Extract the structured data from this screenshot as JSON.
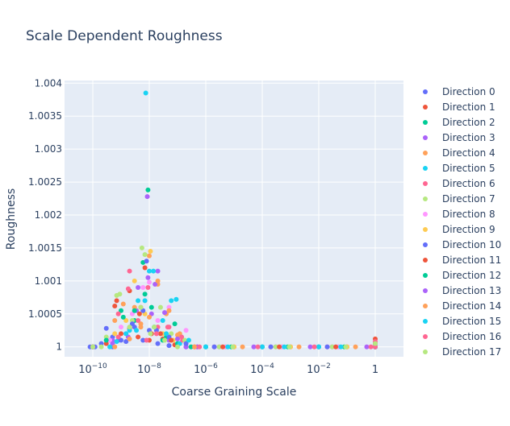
{
  "chart_data": {
    "type": "scatter",
    "title": "Scale Dependent Roughness",
    "xlabel": "Coarse Graining Scale",
    "ylabel": "Roughness",
    "x_scale": "log",
    "xlim": [
      1e-11,
      10
    ],
    "ylim": [
      0.99985,
      1.00404
    ],
    "x_ticks": [
      {
        "value": 1e-10,
        "base": "10",
        "exp": "−10"
      },
      {
        "value": 1e-08,
        "base": "10",
        "exp": "−8"
      },
      {
        "value": 1e-06,
        "base": "10",
        "exp": "−6"
      },
      {
        "value": 0.0001,
        "base": "10",
        "exp": "−4"
      },
      {
        "value": 0.01,
        "base": "10",
        "exp": "−2"
      },
      {
        "value": 1,
        "base": "1",
        "exp": ""
      }
    ],
    "y_ticks": [
      {
        "value": 1.0,
        "label": "1"
      },
      {
        "value": 1.0005,
        "label": "1.0005"
      },
      {
        "value": 1.001,
        "label": "1.001"
      },
      {
        "value": 1.0015,
        "label": "1.0015"
      },
      {
        "value": 1.002,
        "label": "1.002"
      },
      {
        "value": 1.0025,
        "label": "1.0025"
      },
      {
        "value": 1.003,
        "label": "1.003"
      },
      {
        "value": 1.0035,
        "label": "1.0035"
      },
      {
        "value": 1.004,
        "label": "1.004"
      }
    ],
    "grid": true,
    "legend_position": "right",
    "series": [
      {
        "name": "Direction 0",
        "color": "#636efa",
        "points": [
          [
            8e-11,
            1.0
          ],
          [
            1.2e-10,
            1.0
          ],
          [
            2e-10,
            1.00005
          ],
          [
            3e-10,
            1.00028
          ],
          [
            5e-10,
            1.00015
          ],
          [
            8e-10,
            1.0001
          ],
          [
            1.5e-09,
            1.00008
          ],
          [
            3e-09,
            1.0003
          ],
          [
            6e-09,
            1.0001
          ],
          [
            1e-08,
            1.00025
          ],
          [
            2e-08,
            1.00005
          ],
          [
            5e-08,
            1.00002
          ],
          [
            2e-07,
            1.0
          ],
          [
            1e-06,
            1.0
          ],
          [
            0.0001,
            1.0
          ],
          [
            0.01,
            1.0
          ],
          [
            1,
            1.0
          ]
        ]
      },
      {
        "name": "Direction 1",
        "color": "#EF553B",
        "points": [
          [
            1e-10,
            1.0
          ],
          [
            3e-10,
            1.00005
          ],
          [
            6e-10,
            1.00062
          ],
          [
            1e-09,
            1.0002
          ],
          [
            2e-09,
            1.00028
          ],
          [
            4e-09,
            1.00015
          ],
          [
            7e-09,
            1.0012
          ],
          [
            1.2e-08,
            1.0002
          ],
          [
            3e-08,
            1.00012
          ],
          [
            8e-08,
            1.00003
          ],
          [
            5e-07,
            1.0
          ],
          [
            1e-05,
            1.0
          ],
          [
            0.001,
            1.0
          ],
          [
            0.1,
            1.0
          ],
          [
            1,
            1.00012
          ]
        ]
      },
      {
        "name": "Direction 2",
        "color": "#00cc96",
        "points": [
          [
            1e-10,
            1.0
          ],
          [
            4e-10,
            1.0001
          ],
          [
            1e-09,
            1.00055
          ],
          [
            3e-09,
            1.0004
          ],
          [
            6e-09,
            1.00128
          ],
          [
            9e-09,
            1.00238
          ],
          [
            1.5e-08,
            1.0003
          ],
          [
            4e-08,
            1.00015
          ],
          [
            1e-07,
            1.00005
          ],
          [
            1e-06,
            1.0
          ],
          [
            0.0001,
            1.0
          ],
          [
            0.01,
            1.0
          ],
          [
            1,
            1.00005
          ]
        ]
      },
      {
        "name": "Direction 3",
        "color": "#ab63fa",
        "points": [
          [
            1e-10,
            1.0
          ],
          [
            5e-10,
            1.0001
          ],
          [
            1.5e-09,
            1.0002
          ],
          [
            3.5e-09,
            1.00055
          ],
          [
            8.5e-09,
            1.00228
          ],
          [
            1.2e-08,
            1.0005
          ],
          [
            2e-08,
            1.00115
          ],
          [
            5e-08,
            1.0001
          ],
          [
            2e-07,
            1.0
          ],
          [
            3e-06,
            1.0
          ],
          [
            0.0003,
            1.0
          ],
          [
            0.03,
            1.0
          ],
          [
            1,
            1.0
          ]
        ]
      },
      {
        "name": "Direction 4",
        "color": "#FFA15A",
        "points": [
          [
            1e-10,
            1.0
          ],
          [
            6e-10,
            1.0004
          ],
          [
            1.2e-09,
            1.00065
          ],
          [
            3e-09,
            1.0006
          ],
          [
            5e-09,
            1.00035
          ],
          [
            1e-08,
            1.00138
          ],
          [
            2e-08,
            1.00095
          ],
          [
            4e-08,
            1.0005
          ],
          [
            1e-07,
            1.00018
          ],
          [
            4e-07,
            1.0
          ],
          [
            5e-06,
            1.0
          ],
          [
            0.0005,
            1.0
          ],
          [
            0.05,
            1.0
          ],
          [
            1,
            1.0
          ]
        ]
      },
      {
        "name": "Direction 5",
        "color": "#19d3f3",
        "points": [
          [
            1e-10,
            1.0
          ],
          [
            7e-10,
            1.00008
          ],
          [
            2e-09,
            1.00025
          ],
          [
            4e-09,
            1.0007
          ],
          [
            7.5e-09,
            1.00385
          ],
          [
            1e-08,
            1.00115
          ],
          [
            3e-08,
            1.0004
          ],
          [
            6e-08,
            1.0007
          ],
          [
            1.2e-07,
            1.00005
          ],
          [
            1e-06,
            1.0
          ],
          [
            0.0001,
            1.0
          ],
          [
            0.01,
            1.0
          ],
          [
            1,
            1.0
          ]
        ]
      },
      {
        "name": "Direction 6",
        "color": "#FF6692",
        "points": [
          [
            1e-10,
            1.0
          ],
          [
            8e-10,
            1.0005
          ],
          [
            2e-09,
            1.00115
          ],
          [
            5e-09,
            1.0006
          ],
          [
            9e-09,
            1.0009
          ],
          [
            2e-08,
            1.0003
          ],
          [
            5e-08,
            1.0003
          ],
          [
            1.5e-07,
            1.0001
          ],
          [
            2e-06,
            1.0
          ],
          [
            0.0002,
            1.0
          ],
          [
            0.02,
            1.0
          ],
          [
            1,
            1.00008
          ]
        ]
      },
      {
        "name": "Direction 7",
        "color": "#B6E880",
        "points": [
          [
            1e-10,
            1.0
          ],
          [
            3e-10,
            1.00015
          ],
          [
            9e-10,
            1.0008
          ],
          [
            2.5e-09,
            1.0004
          ],
          [
            5.5e-09,
            1.0015
          ],
          [
            1.1e-08,
            1.0002
          ],
          [
            2.5e-08,
            1.0006
          ],
          [
            6e-08,
            1.0002
          ],
          [
            1.8e-07,
            1.0001
          ],
          [
            3e-06,
            1.0
          ],
          [
            0.0003,
            1.0
          ],
          [
            0.03,
            1.0
          ],
          [
            1,
            1.0
          ]
        ]
      },
      {
        "name": "Direction 8",
        "color": "#FF97FF",
        "points": [
          [
            1e-10,
            1.0
          ],
          [
            4e-10,
            1.0001
          ],
          [
            1e-09,
            1.0003
          ],
          [
            2.5e-09,
            1.0005
          ],
          [
            6e-09,
            1.0009
          ],
          [
            1e-08,
            1.00098
          ],
          [
            2e-08,
            1.0004
          ],
          [
            5e-08,
            1.0006
          ],
          [
            2e-07,
            1.00025
          ],
          [
            5e-06,
            1.0
          ],
          [
            0.0005,
            1.0
          ],
          [
            0.05,
            1.0
          ],
          [
            1,
            1.0
          ]
        ]
      },
      {
        "name": "Direction 9",
        "color": "#FECB52",
        "points": [
          [
            1e-10,
            1.0
          ],
          [
            6e-10,
            1.0002
          ],
          [
            1.5e-09,
            1.0004
          ],
          [
            3e-09,
            1.001
          ],
          [
            7e-09,
            1.0005
          ],
          [
            1.1e-08,
            1.00145
          ],
          [
            3e-08,
            1.0002
          ],
          [
            7e-08,
            1.0001
          ],
          [
            3e-07,
            1.0
          ],
          [
            1e-05,
            1.0
          ],
          [
            0.001,
            1.0
          ],
          [
            0.1,
            1.0
          ],
          [
            1,
            1.0
          ]
        ]
      },
      {
        "name": "Direction 10",
        "color": "#636efa",
        "points": [
          [
            1e-10,
            1.0
          ],
          [
            5e-10,
            1.0
          ],
          [
            1e-09,
            1.0001
          ],
          [
            2.5e-09,
            1.00035
          ],
          [
            6e-09,
            1.00055
          ],
          [
            8e-09,
            1.0013
          ],
          [
            1.8e-08,
            1.00025
          ],
          [
            5e-08,
            1.00015
          ],
          [
            2e-07,
            1.00005
          ],
          [
            2e-06,
            1.0
          ],
          [
            0.0002,
            1.0
          ],
          [
            0.02,
            1.0
          ],
          [
            1,
            1.0
          ]
        ]
      },
      {
        "name": "Direction 11",
        "color": "#EF553B",
        "points": [
          [
            1e-10,
            1.0
          ],
          [
            7e-10,
            1.0007
          ],
          [
            2e-09,
            1.00085
          ],
          [
            4.5e-09,
            1.0005
          ],
          [
            1e-08,
            1.0001
          ],
          [
            2.5e-08,
            1.0002
          ],
          [
            6e-08,
            1.0001
          ],
          [
            4e-07,
            1.0
          ],
          [
            4e-06,
            1.0
          ],
          [
            0.0004,
            1.0
          ],
          [
            0.04,
            1.0
          ],
          [
            1,
            1.0
          ]
        ]
      },
      {
        "name": "Direction 12",
        "color": "#00cc96",
        "points": [
          [
            1e-10,
            1.0
          ],
          [
            3e-10,
            1.0001
          ],
          [
            1.2e-09,
            1.00045
          ],
          [
            3e-09,
            1.00055
          ],
          [
            7e-09,
            1.0008
          ],
          [
            1.2e-08,
            1.0006
          ],
          [
            3e-08,
            1.0001
          ],
          [
            8e-08,
            1.00035
          ],
          [
            3e-07,
            1.0
          ],
          [
            8e-06,
            1.0
          ],
          [
            0.0008,
            1.0
          ],
          [
            0.08,
            1.0
          ],
          [
            1,
            1.0
          ]
        ]
      },
      {
        "name": "Direction 13",
        "color": "#ab63fa",
        "points": [
          [
            1e-10,
            1.0
          ],
          [
            5e-10,
            1.00005
          ],
          [
            1.8e-09,
            1.00015
          ],
          [
            4e-09,
            1.0009
          ],
          [
            9e-09,
            1.00105
          ],
          [
            1.6e-08,
            1.00095
          ],
          [
            3.5e-08,
            1.00052
          ],
          [
            1e-07,
            1.00012
          ],
          [
            5e-07,
            1.0
          ],
          [
            5e-05,
            1.0
          ],
          [
            0.005,
            1.0
          ],
          [
            0.5,
            1.0
          ],
          [
            1,
            1.0
          ]
        ]
      },
      {
        "name": "Direction 14",
        "color": "#FFA15A",
        "points": [
          [
            1e-10,
            1.0
          ],
          [
            6e-10,
            1.0
          ],
          [
            2e-09,
            1.00012
          ],
          [
            5e-09,
            1.0003
          ],
          [
            1e-08,
            1.00045
          ],
          [
            2e-08,
            1.001
          ],
          [
            5e-08,
            1.00055
          ],
          [
            1.2e-07,
            1.0002
          ],
          [
            4e-07,
            1.0
          ],
          [
            2e-05,
            1.0
          ],
          [
            0.002,
            1.0
          ],
          [
            0.2,
            1.0
          ],
          [
            1,
            1.0
          ]
        ]
      },
      {
        "name": "Direction 15",
        "color": "#19d3f3",
        "points": [
          [
            1e-10,
            1.0
          ],
          [
            4e-10,
            1.0
          ],
          [
            1.5e-09,
            1.0002
          ],
          [
            3.5e-09,
            1.00025
          ],
          [
            7e-09,
            1.0007
          ],
          [
            1.4e-08,
            1.00115
          ],
          [
            4e-08,
            1.0002
          ],
          [
            9e-08,
            1.00072
          ],
          [
            2.5e-07,
            1.0001
          ],
          [
            6e-06,
            1.0
          ],
          [
            0.0006,
            1.0
          ],
          [
            0.06,
            1.0
          ],
          [
            1,
            1.0
          ]
        ]
      },
      {
        "name": "Direction 16",
        "color": "#FF6692",
        "points": [
          [
            1e-10,
            1.0
          ],
          [
            8e-10,
            1.00015
          ],
          [
            1.8e-09,
            1.00088
          ],
          [
            4e-09,
            1.0004
          ],
          [
            8e-09,
            1.0001
          ],
          [
            1.8e-08,
            1.0002
          ],
          [
            4.5e-08,
            1.0003
          ],
          [
            1.4e-07,
            1.00015
          ],
          [
            6e-07,
            1.0
          ],
          [
            7e-05,
            1.0
          ],
          [
            0.007,
            1.0
          ],
          [
            0.7,
            1.0
          ],
          [
            1,
            1.0
          ]
        ]
      },
      {
        "name": "Direction 17",
        "color": "#B6E880",
        "points": [
          [
            1e-10,
            1.0
          ],
          [
            2e-10,
            1.0
          ],
          [
            7e-10,
            1.00078
          ],
          [
            2e-09,
            1.0003
          ],
          [
            5e-09,
            1.0006
          ],
          [
            7e-09,
            1.0014
          ],
          [
            1.5e-08,
            1.0003
          ],
          [
            3.5e-08,
            1.0001
          ],
          [
            1e-07,
            1.0
          ],
          [
            9e-06,
            1.0
          ],
          [
            0.0009,
            1.0
          ],
          [
            0.09,
            1.0
          ],
          [
            1,
            1.00005
          ]
        ]
      }
    ]
  }
}
